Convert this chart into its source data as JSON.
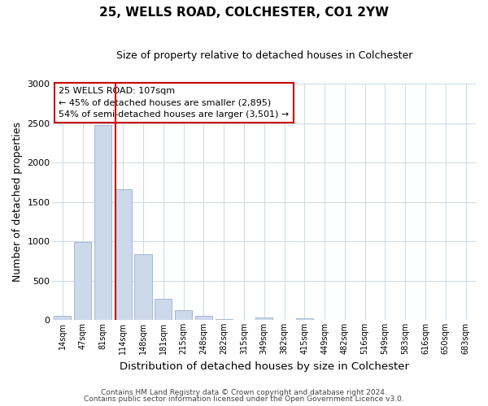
{
  "title": "25, WELLS ROAD, COLCHESTER, CO1 2YW",
  "subtitle": "Size of property relative to detached houses in Colchester",
  "xlabel": "Distribution of detached houses by size in Colchester",
  "ylabel": "Number of detached properties",
  "bar_labels": [
    "14sqm",
    "47sqm",
    "81sqm",
    "114sqm",
    "148sqm",
    "181sqm",
    "215sqm",
    "248sqm",
    "282sqm",
    "315sqm",
    "349sqm",
    "382sqm",
    "415sqm",
    "449sqm",
    "482sqm",
    "516sqm",
    "549sqm",
    "583sqm",
    "616sqm",
    "650sqm",
    "683sqm"
  ],
  "bar_values": [
    55,
    990,
    2470,
    1660,
    840,
    270,
    125,
    50,
    10,
    5,
    35,
    0,
    18,
    0,
    0,
    0,
    0,
    0,
    0,
    0,
    0
  ],
  "bar_color": "#ccd9ea",
  "bar_edge_color": "#a4b8d0",
  "vline_color": "#cc0000",
  "vline_pos": 2.62,
  "annotation_text_line1": "25 WELLS ROAD: 107sqm",
  "annotation_text_line2": "← 45% of detached houses are smaller (2,895)",
  "annotation_text_line3": "54% of semi-detached houses are larger (3,501) →",
  "ylim": [
    0,
    3000
  ],
  "yticks": [
    0,
    500,
    1000,
    1500,
    2000,
    2500,
    3000
  ],
  "footer_line1": "Contains HM Land Registry data © Crown copyright and database right 2024.",
  "footer_line2": "Contains public sector information licensed under the Open Government Licence v3.0.",
  "background_color": "#ffffff",
  "grid_color": "#d0dce8"
}
